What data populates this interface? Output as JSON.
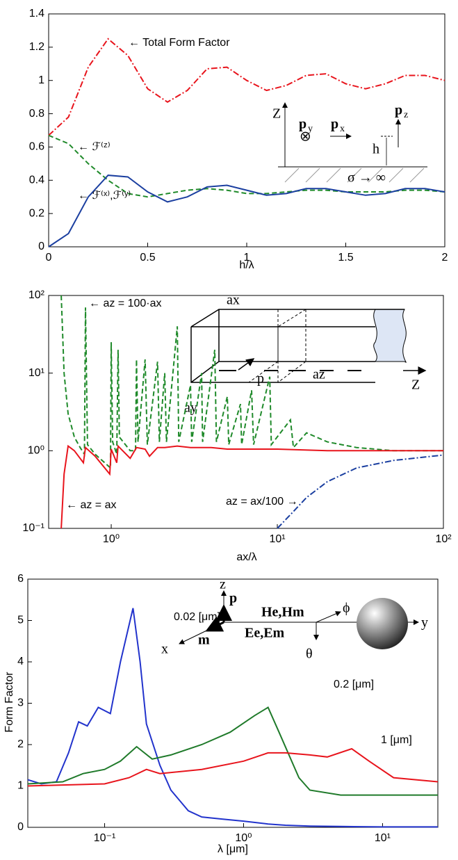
{
  "chart_data": [
    {
      "type": "line",
      "x_label": "h/λ",
      "xlim": [
        0,
        2
      ],
      "ylim": [
        0,
        1.4
      ],
      "xticks": [
        0,
        0.5,
        1,
        1.5,
        2
      ],
      "yticks": [
        0,
        0.2,
        0.4,
        0.6,
        0.8,
        1,
        1.2,
        1.4
      ],
      "x": [
        0,
        0.1,
        0.2,
        0.3,
        0.4,
        0.5,
        0.6,
        0.7,
        0.8,
        0.9,
        1.0,
        1.1,
        1.2,
        1.3,
        1.4,
        1.5,
        1.6,
        1.7,
        1.8,
        1.9,
        2.0
      ],
      "series": [
        {
          "name": "← Total Form Factor",
          "color": "#e8141c",
          "linestyle": "dashdot",
          "values": [
            0.67,
            0.78,
            1.08,
            1.25,
            1.15,
            0.95,
            0.87,
            0.94,
            1.07,
            1.08,
            1.0,
            0.94,
            0.97,
            1.03,
            1.04,
            0.98,
            0.95,
            0.98,
            1.03,
            1.03,
            1.0
          ]
        },
        {
          "name": "← ℱ⁽ᶻ⁾",
          "color": "#1f8a2a",
          "linestyle": "dashed",
          "values": [
            0.67,
            0.62,
            0.5,
            0.4,
            0.32,
            0.3,
            0.32,
            0.34,
            0.35,
            0.34,
            0.32,
            0.32,
            0.33,
            0.34,
            0.34,
            0.33,
            0.33,
            0.33,
            0.34,
            0.34,
            0.33
          ]
        },
        {
          "name": "← ℱ⁽ˣ⁾,ℱ⁽ʸ⁾",
          "color": "#1b3fa0",
          "linestyle": "solid",
          "values": [
            0,
            0.08,
            0.3,
            0.43,
            0.42,
            0.33,
            0.27,
            0.3,
            0.36,
            0.37,
            0.34,
            0.31,
            0.32,
            0.35,
            0.35,
            0.33,
            0.31,
            0.32,
            0.35,
            0.35,
            0.33
          ]
        }
      ],
      "inset_labels": [
        "Z",
        "p",
        "y",
        "⊗",
        "p",
        "x",
        "p",
        "z",
        "h",
        "σ → ∞"
      ]
    },
    {
      "type": "line",
      "x_label": "ax/λ",
      "xscale": "log",
      "yscale": "log",
      "xlim": [
        0.42,
        100
      ],
      "ylim": [
        0.1,
        100
      ],
      "xticks": [
        {
          "value": 1,
          "label": "10⁰"
        },
        {
          "value": 10,
          "label": "10¹"
        },
        {
          "value": 100,
          "label": "10²"
        }
      ],
      "yticks": [
        {
          "value": 0.1,
          "label": "10⁻¹"
        },
        {
          "value": 1,
          "label": "10⁰"
        },
        {
          "value": 10,
          "label": "10¹"
        },
        {
          "value": 100,
          "label": "10²"
        }
      ],
      "series": [
        {
          "name": "← az = 100·ax",
          "color": "#1f8a2a",
          "linestyle": "dashed",
          "x": [
            0.5,
            0.52,
            0.55,
            0.6,
            0.65,
            0.69,
            0.7,
            0.72,
            0.8,
            0.95,
            0.99,
            1.0,
            1.02,
            1.08,
            1.1,
            1.12,
            1.3,
            1.4,
            1.42,
            1.45,
            1.6,
            1.65,
            1.9,
            1.95,
            2.1,
            2.15,
            2.5,
            2.55,
            3.0,
            3.05,
            3.5,
            3.55,
            4.2,
            4.3,
            5,
            5.1,
            6,
            6.1,
            7,
            7.2,
            9,
            9.2,
            12,
            12.5,
            15,
            20,
            30,
            50,
            100
          ],
          "values": [
            100,
            10,
            3,
            1.5,
            1.1,
            0.9,
            70,
            1.2,
            0.9,
            0.65,
            0.6,
            25,
            1.3,
            0.9,
            20,
            1.5,
            1.0,
            1.0,
            15,
            1.3,
            15,
            1.2,
            14,
            1.3,
            10,
            1.3,
            40,
            1.3,
            7,
            1.3,
            10,
            1.3,
            20,
            1.3,
            5,
            1.2,
            4,
            1.2,
            6,
            1.2,
            9,
            1.2,
            2.5,
            1.1,
            1.7,
            1.3,
            1.1,
            1.0,
            1.0
          ]
        },
        {
          "name": "← az = ax",
          "color": "#e8141c",
          "linestyle": "solid",
          "x": [
            0.5,
            0.52,
            0.55,
            0.6,
            0.68,
            0.7,
            0.8,
            0.98,
            1.0,
            1.08,
            1.1,
            1.3,
            1.42,
            1.6,
            1.7,
            1.9,
            2.1,
            2.5,
            3,
            4,
            5,
            7,
            10,
            20,
            50,
            100
          ],
          "values": [
            0.1,
            0.5,
            1.15,
            1.0,
            0.7,
            1.1,
            0.85,
            0.5,
            1.05,
            0.7,
            1.15,
            0.8,
            1.1,
            1.05,
            0.85,
            1.1,
            1.1,
            1.15,
            1.1,
            1.1,
            1.05,
            1.05,
            1.05,
            1.0,
            1.0,
            1.0
          ]
        },
        {
          "name": "az = ax/100 →",
          "color": "#1b3fa0",
          "linestyle": "dashdot",
          "x": [
            10,
            12,
            15,
            20,
            30,
            50,
            100
          ],
          "values": [
            0.1,
            0.15,
            0.25,
            0.4,
            0.6,
            0.75,
            0.88
          ]
        }
      ],
      "inset_labels": [
        "ax",
        "az",
        "ay",
        "p",
        "Z"
      ]
    },
    {
      "type": "line",
      "x_label": "λ [μm]",
      "y_label": "Form Factor",
      "xscale": "log",
      "xlim": [
        0.028,
        25
      ],
      "ylim": [
        0,
        6
      ],
      "xticks": [
        {
          "value": 0.1,
          "label": "10⁻¹"
        },
        {
          "value": 1,
          "label": "10⁰"
        },
        {
          "value": 10,
          "label": "10¹"
        }
      ],
      "yticks": [
        0,
        1,
        2,
        3,
        4,
        5,
        6
      ],
      "series": [
        {
          "name": "0.02 [μm]",
          "color": "#2233cc",
          "linestyle": "solid",
          "x": [
            0.028,
            0.035,
            0.045,
            0.055,
            0.065,
            0.075,
            0.09,
            0.11,
            0.13,
            0.16,
            0.18,
            0.2,
            0.25,
            0.3,
            0.4,
            0.5,
            0.7,
            1,
            1.5,
            2,
            3,
            5,
            10,
            25
          ],
          "values": [
            1.15,
            1.05,
            1.1,
            1.8,
            2.55,
            2.45,
            2.9,
            2.75,
            4.0,
            5.3,
            4.0,
            2.5,
            1.5,
            0.9,
            0.4,
            0.25,
            0.2,
            0.15,
            0.08,
            0.05,
            0.03,
            0.02,
            0.01,
            0.01
          ]
        },
        {
          "name": "0.2 [μm]",
          "color": "#1f7a2a",
          "linestyle": "solid",
          "x": [
            0.028,
            0.05,
            0.07,
            0.1,
            0.13,
            0.17,
            0.22,
            0.3,
            0.5,
            0.8,
            1.2,
            1.5,
            1.8,
            2.5,
            3,
            5,
            10,
            25
          ],
          "values": [
            1.05,
            1.1,
            1.3,
            1.4,
            1.6,
            1.95,
            1.65,
            1.75,
            2.0,
            2.3,
            2.7,
            2.9,
            2.3,
            1.2,
            0.9,
            0.78,
            0.78,
            0.78
          ]
        },
        {
          "name": "1 [μm]",
          "color": "#e8141c",
          "linestyle": "solid",
          "x": [
            0.028,
            0.1,
            0.15,
            0.2,
            0.25,
            0.5,
            1,
            1.5,
            2,
            3,
            4,
            6,
            8,
            12,
            25
          ],
          "values": [
            1.0,
            1.05,
            1.2,
            1.4,
            1.3,
            1.4,
            1.6,
            1.8,
            1.8,
            1.75,
            1.7,
            1.9,
            1.6,
            1.2,
            1.1
          ]
        }
      ],
      "inset_labels": [
        "z",
        "p",
        "x",
        "m",
        "He,Hm",
        "Ee,Em",
        "ϕ",
        "θ",
        "y"
      ]
    }
  ]
}
